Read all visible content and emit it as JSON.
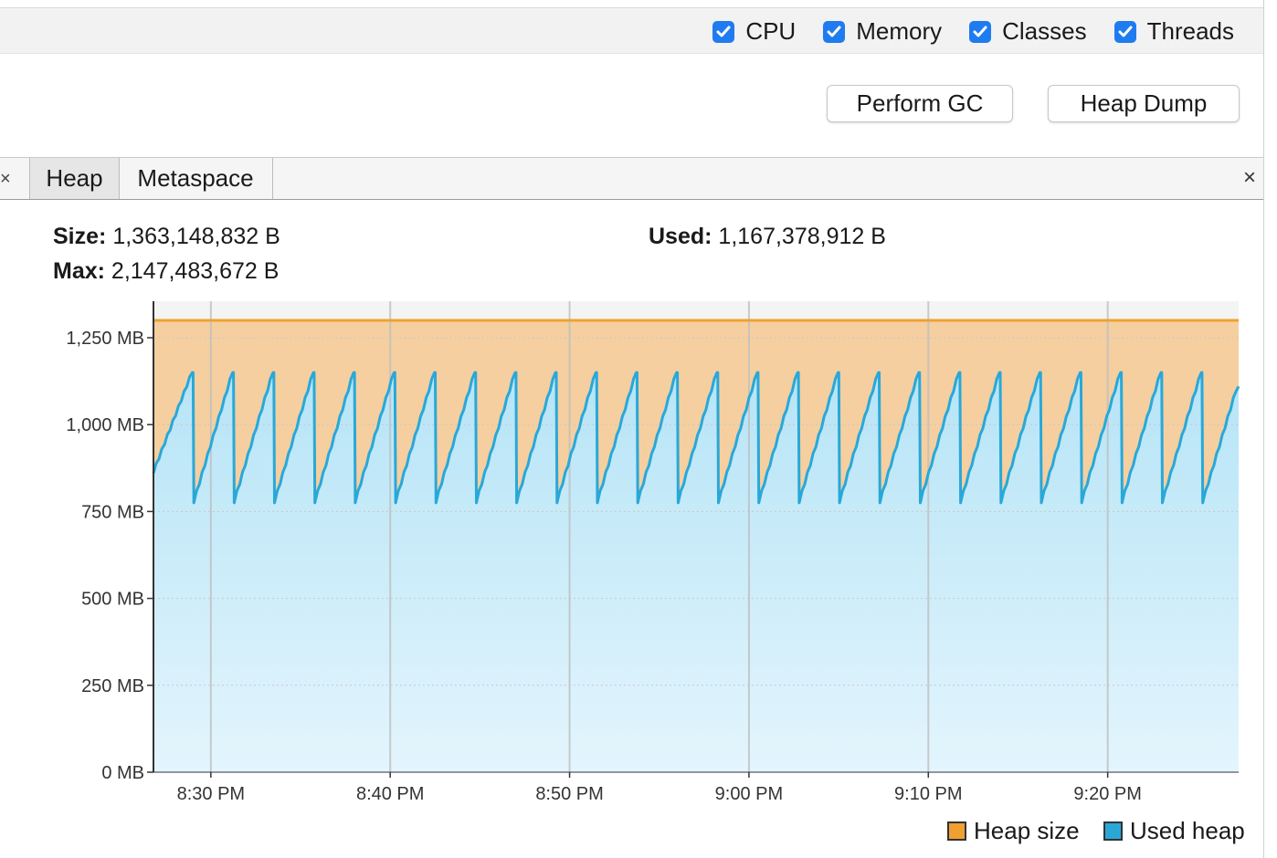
{
  "toolbar": {
    "checkboxes": [
      {
        "label": "CPU",
        "checked": true
      },
      {
        "label": "Memory",
        "checked": true
      },
      {
        "label": "Classes",
        "checked": true
      },
      {
        "label": "Threads",
        "checked": true
      }
    ]
  },
  "actions": {
    "perform_gc": "Perform GC",
    "heap_dump": "Heap Dump"
  },
  "tabs": {
    "heap": "Heap",
    "metaspace": "Metaspace",
    "close": "×",
    "left_close": "×"
  },
  "stats": {
    "size_label": "Size:",
    "size_value": "1,363,148,832 B",
    "max_label": "Max:",
    "max_value": "2,147,483,672 B",
    "used_label": "Used:",
    "used_value": "1,167,378,912 B"
  },
  "colors": {
    "heap_size": "#f0a030",
    "used_heap": "#29a8d8",
    "heap_fill": "#f5cfa0",
    "used_fill": "#bfe8f7"
  },
  "legend": {
    "heap_size": "Heap size",
    "used_heap": "Used heap"
  },
  "chart_data": {
    "type": "area",
    "y_ticks": [
      "0 MB",
      "250 MB",
      "500 MB",
      "750 MB",
      "1,000 MB",
      "1,250 MB"
    ],
    "y_tick_values": [
      0,
      250,
      500,
      750,
      1000,
      1250
    ],
    "ylim": [
      0,
      1355
    ],
    "x_ticks": [
      "8:30 PM",
      "8:40 PM",
      "8:50 PM",
      "9:00 PM",
      "9:10 PM",
      "9:20 PM"
    ],
    "x_tick_minutes": [
      30,
      40,
      50,
      60,
      70,
      80
    ],
    "xlim_minutes": [
      26.8,
      87.3
    ],
    "grid": true,
    "legend_position": "bottom-right",
    "series": [
      {
        "name": "Heap size",
        "values": [
          1300
        ]
      },
      {
        "name": "Used heap",
        "cycle_start": 26.8,
        "cycle_period_minutes": 2.25,
        "low": 775,
        "high": 1150,
        "first_value": 860,
        "last_value": 1110
      }
    ]
  }
}
